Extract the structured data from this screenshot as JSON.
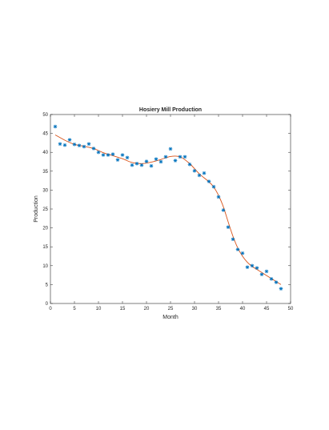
{
  "chart_data": {
    "type": "scatter",
    "title": "Hosiery Mill Production",
    "xlabel": "Month",
    "ylabel": "Production",
    "xlim": [
      0,
      50
    ],
    "ylim": [
      0,
      50
    ],
    "xticks": [
      0,
      5,
      10,
      15,
      20,
      25,
      30,
      35,
      40,
      45,
      50
    ],
    "yticks": [
      0,
      5,
      10,
      15,
      20,
      25,
      30,
      35,
      40,
      45,
      50
    ],
    "grid": false,
    "legend": "none",
    "series": [
      {
        "marker": "asterisk",
        "color": "#0072BD",
        "x": [
          1,
          2,
          3,
          4,
          5,
          6,
          7,
          8,
          9,
          10,
          11,
          12,
          13,
          14,
          15,
          16,
          17,
          18,
          19,
          20,
          21,
          22,
          23,
          24,
          25,
          26,
          27,
          28,
          29,
          30,
          31,
          32,
          33,
          34,
          35,
          36,
          37,
          38,
          39,
          40,
          41,
          42,
          43,
          44,
          45,
          46,
          47,
          48
        ],
        "y": [
          46.8,
          42.2,
          41.9,
          43.3,
          42.1,
          41.8,
          41.5,
          42.2,
          41.0,
          40.0,
          39.3,
          39.3,
          39.5,
          38.0,
          39.3,
          38.6,
          36.6,
          37.0,
          36.6,
          37.6,
          36.4,
          38.2,
          37.5,
          38.8,
          40.9,
          37.8,
          38.8,
          38.8,
          36.8,
          35.1,
          33.9,
          34.5,
          32.3,
          30.9,
          28.2,
          24.7,
          20.2,
          17.0,
          14.3,
          13.3,
          9.6,
          10.0,
          9.4,
          7.7,
          8.5,
          6.5,
          5.6,
          3.9
        ]
      },
      {
        "line": "smooth-fit",
        "color": "#D95319",
        "x": [
          1,
          3,
          5,
          7,
          9,
          11,
          13,
          15,
          17,
          19,
          21,
          23,
          25,
          27,
          29,
          31,
          33,
          34,
          35,
          36,
          37,
          38,
          39,
          40,
          41,
          42,
          43,
          44,
          45,
          46,
          47,
          48
        ],
        "y": [
          44.6,
          43.2,
          42.1,
          41.6,
          41.0,
          39.9,
          39.1,
          38.3,
          37.3,
          37.0,
          37.4,
          38.1,
          38.9,
          38.8,
          37.0,
          34.3,
          32.2,
          30.8,
          28.6,
          25.6,
          21.6,
          17.8,
          14.7,
          12.5,
          10.9,
          9.8,
          9.0,
          8.2,
          7.4,
          6.6,
          5.8,
          5.0
        ]
      }
    ]
  }
}
